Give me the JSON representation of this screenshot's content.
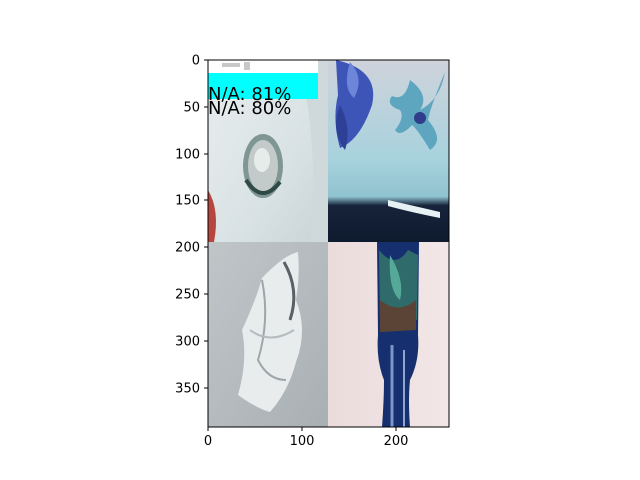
{
  "axes": {
    "x_ticks": [
      "0",
      "100",
      "200"
    ],
    "y_ticks": [
      "0",
      "50",
      "100",
      "150",
      "200",
      "250",
      "300",
      "350"
    ]
  },
  "detections": [
    {
      "label": "N/A: 81%",
      "color": "#00ffff"
    },
    {
      "label": "N/A: 80%",
      "color": "#ffffff"
    }
  ],
  "tiles": [
    {
      "name": "tile-top-left",
      "subject": "glass bottle bottom on white cloth"
    },
    {
      "name": "tile-top-right",
      "subject": "blue flower decoration"
    },
    {
      "name": "tile-bottom-left",
      "subject": "crumpled foil wrapper"
    },
    {
      "name": "tile-bottom-right",
      "subject": "blue glass bottle"
    }
  ]
}
